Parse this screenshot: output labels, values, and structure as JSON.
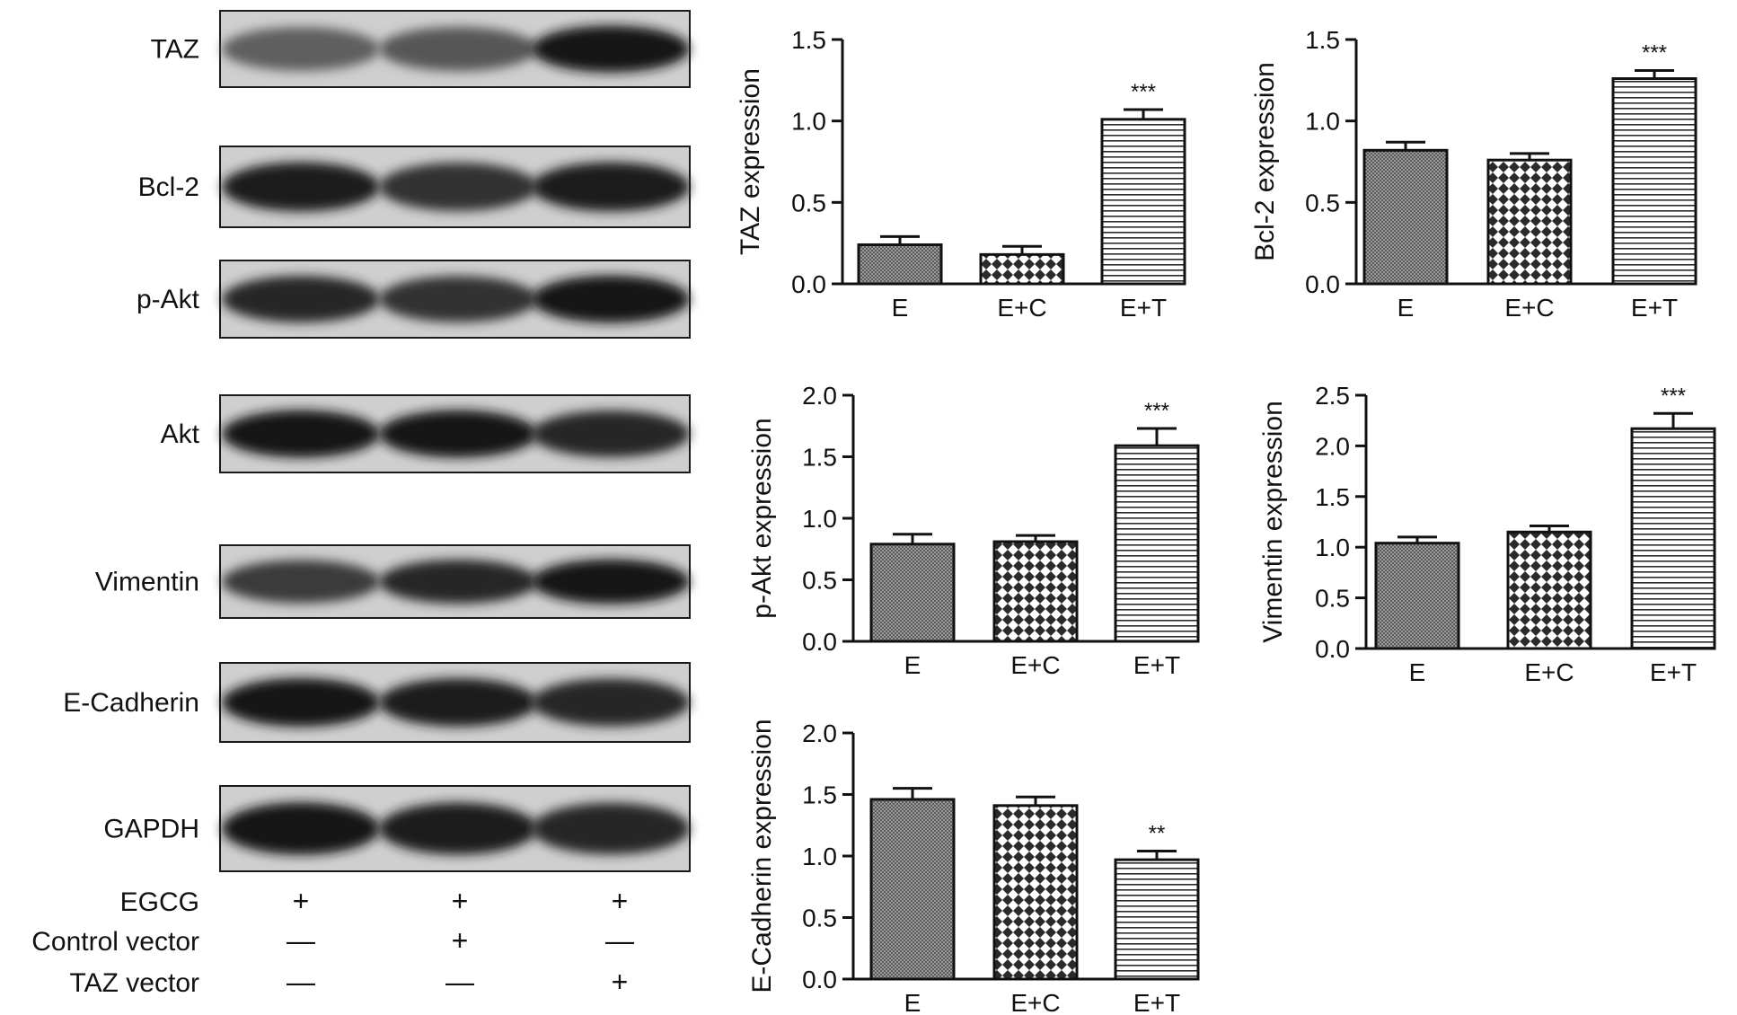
{
  "western_blot": {
    "bands": [
      {
        "label": "TAZ",
        "intensity": [
          0.55,
          0.6,
          0.95
        ]
      },
      {
        "label": "Bcl-2",
        "intensity": [
          0.9,
          0.8,
          0.9
        ]
      },
      {
        "label": "p-Akt",
        "intensity": [
          0.85,
          0.8,
          0.95
        ]
      },
      {
        "label": "Akt",
        "intensity": [
          0.95,
          0.95,
          0.85
        ]
      },
      {
        "label": "Vimentin",
        "intensity": [
          0.75,
          0.85,
          0.95
        ]
      },
      {
        "label": "E-Cadherin",
        "intensity": [
          0.95,
          0.9,
          0.85
        ]
      },
      {
        "label": "GAPDH",
        "intensity": [
          0.95,
          0.9,
          0.85
        ]
      }
    ],
    "conditions": [
      {
        "label": "EGCG",
        "signs": [
          "+",
          "+",
          "+"
        ]
      },
      {
        "label": "Control vector",
        "signs": [
          "—",
          "+",
          "—"
        ]
      },
      {
        "label": "TAZ vector",
        "signs": [
          "—",
          "—",
          "+"
        ]
      }
    ]
  },
  "chart_data": [
    {
      "type": "bar",
      "categories": [
        "E",
        "E+C",
        "E+T"
      ],
      "values": [
        0.24,
        0.18,
        1.01
      ],
      "errors": [
        0.05,
        0.05,
        0.06
      ],
      "significance": [
        "",
        "",
        "***"
      ],
      "ylabel": "TAZ expression",
      "ylim": [
        0,
        1.5
      ],
      "yticks": [
        "0.0",
        "0.5",
        "1.0",
        "1.5"
      ],
      "grid": false
    },
    {
      "type": "bar",
      "categories": [
        "E",
        "E+C",
        "E+T"
      ],
      "values": [
        0.82,
        0.76,
        1.26
      ],
      "errors": [
        0.05,
        0.04,
        0.05
      ],
      "significance": [
        "",
        "",
        "***"
      ],
      "ylabel": "Bcl-2 expression",
      "ylim": [
        0,
        1.5
      ],
      "yticks": [
        "0.0",
        "0.5",
        "1.0",
        "1.5"
      ],
      "grid": false
    },
    {
      "type": "bar",
      "categories": [
        "E",
        "E+C",
        "E+T"
      ],
      "values": [
        0.79,
        0.81,
        1.59
      ],
      "errors": [
        0.08,
        0.05,
        0.14
      ],
      "significance": [
        "",
        "",
        "***"
      ],
      "ylabel": "p-Akt expression",
      "ylim": [
        0,
        2.0
      ],
      "yticks": [
        "0.0",
        "0.5",
        "1.0",
        "1.5",
        "2.0"
      ],
      "grid": false
    },
    {
      "type": "bar",
      "categories": [
        "E",
        "E+C",
        "E+T"
      ],
      "values": [
        1.04,
        1.15,
        2.17
      ],
      "errors": [
        0.06,
        0.06,
        0.15
      ],
      "significance": [
        "",
        "",
        "***"
      ],
      "ylabel": "Vimentin expression",
      "ylim": [
        0,
        2.5
      ],
      "yticks": [
        "0.0",
        "0.5",
        "1.0",
        "1.5",
        "2.0",
        "2.5"
      ],
      "grid": false
    },
    {
      "type": "bar",
      "categories": [
        "E",
        "E+C",
        "E+T"
      ],
      "values": [
        1.46,
        1.41,
        0.97
      ],
      "errors": [
        0.09,
        0.07,
        0.07
      ],
      "significance": [
        "",
        "",
        "**"
      ],
      "ylabel": "E-Cadherin expression",
      "ylim": [
        0,
        2.0
      ],
      "yticks": [
        "0.0",
        "0.5",
        "1.0",
        "1.5",
        "2.0"
      ],
      "grid": false
    }
  ]
}
